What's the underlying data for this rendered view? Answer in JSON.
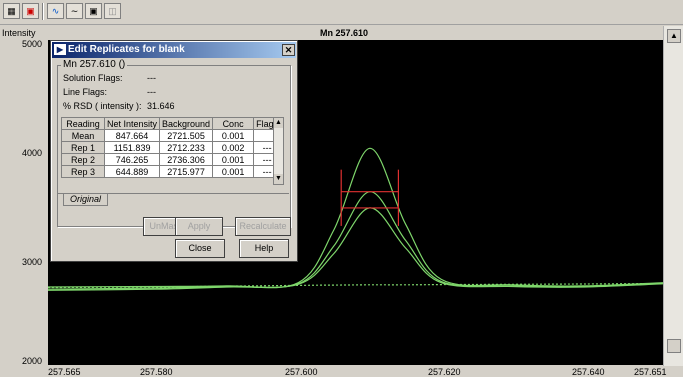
{
  "toolbar": {
    "icons": [
      "grid-icon",
      "chart-icon",
      "line-icon",
      "curve-icon",
      "window-icon",
      "copy-icon"
    ]
  },
  "plot": {
    "y_title": "Intensity",
    "title": "Mn 257.610",
    "y_ticks": [
      "5000",
      "4000",
      "3000",
      "2000"
    ],
    "x_ticks": [
      "257.565",
      "257.580",
      "257.600",
      "257.620",
      "257.640",
      "257.651"
    ]
  },
  "chart_data": {
    "type": "line",
    "title": "Mn 257.610",
    "ylabel": "Intensity",
    "xlabel": "",
    "xlim": [
      257.565,
      257.651
    ],
    "ylim": [
      2000,
      5000
    ],
    "x_ticks": [
      257.565,
      257.58,
      257.6,
      257.62,
      257.64,
      257.651
    ],
    "y_ticks": [
      2000,
      3000,
      4000,
      5000
    ],
    "peak_center": 257.61,
    "series": [
      {
        "x": [
          257.565,
          257.58,
          257.59,
          257.6,
          257.605,
          257.61,
          257.615,
          257.62,
          257.63,
          257.64,
          257.651
        ],
        "values": [
          2720,
          2725,
          2730,
          2760,
          3250,
          4000,
          3300,
          2790,
          2740,
          2730,
          2760
        ]
      },
      {
        "x": [
          257.565,
          257.58,
          257.59,
          257.6,
          257.605,
          257.61,
          257.615,
          257.62,
          257.63,
          257.64,
          257.651
        ],
        "values": [
          2700,
          2710,
          2725,
          2750,
          3100,
          3600,
          3150,
          2770,
          2730,
          2725,
          2755
        ]
      },
      {
        "x": [
          257.565,
          257.58,
          257.59,
          257.6,
          257.605,
          257.61,
          257.615,
          257.62,
          257.63,
          257.64,
          257.651
        ],
        "values": [
          2690,
          2700,
          2720,
          2745,
          3030,
          3450,
          3080,
          2760,
          2725,
          2720,
          2750
        ]
      },
      {
        "x": [
          257.565,
          257.58,
          257.59,
          257.6,
          257.605,
          257.61,
          257.615,
          257.62,
          257.63,
          257.64,
          257.651
        ],
        "values": [
          2715,
          2720,
          2728,
          2735,
          2738,
          2740,
          2740,
          2742,
          2745,
          2748,
          2752
        ]
      }
    ],
    "markers": {
      "x_left": 257.606,
      "x_right": 257.614,
      "y_values": [
        3600,
        3450
      ]
    },
    "colors": {
      "background": "#000000",
      "traces": "#7ed66b",
      "markers": "#e03030"
    }
  },
  "dialog": {
    "title": "Edit Replicates for blank",
    "group_label": "Mn 257.610 ()",
    "solution_flags_label": "Solution Flags:",
    "solution_flags_value": "---",
    "line_flags_label": "Line Flags:",
    "line_flags_value": "---",
    "rsd_label": "% RSD ( intensity ):",
    "rsd_value": "31.646",
    "table": {
      "headers": [
        "Reading",
        "Net Intensity",
        "Background",
        "Conc",
        "Flags"
      ],
      "rows": [
        [
          "Mean",
          "847.664",
          "2721.505",
          "0.001",
          ""
        ],
        [
          "Rep 1",
          "1151.839",
          "2712.233",
          "0.002",
          "---"
        ],
        [
          "Rep 2",
          "746.265",
          "2736.306",
          "0.001",
          "---"
        ],
        [
          "Rep 3",
          "644.889",
          "2715.977",
          "0.001",
          "---"
        ]
      ]
    },
    "tab_label": "Original",
    "buttons": {
      "unmask": "UnMask",
      "apply": "Apply",
      "recalculate": "Recalculate",
      "close": "Close",
      "help": "Help"
    }
  }
}
